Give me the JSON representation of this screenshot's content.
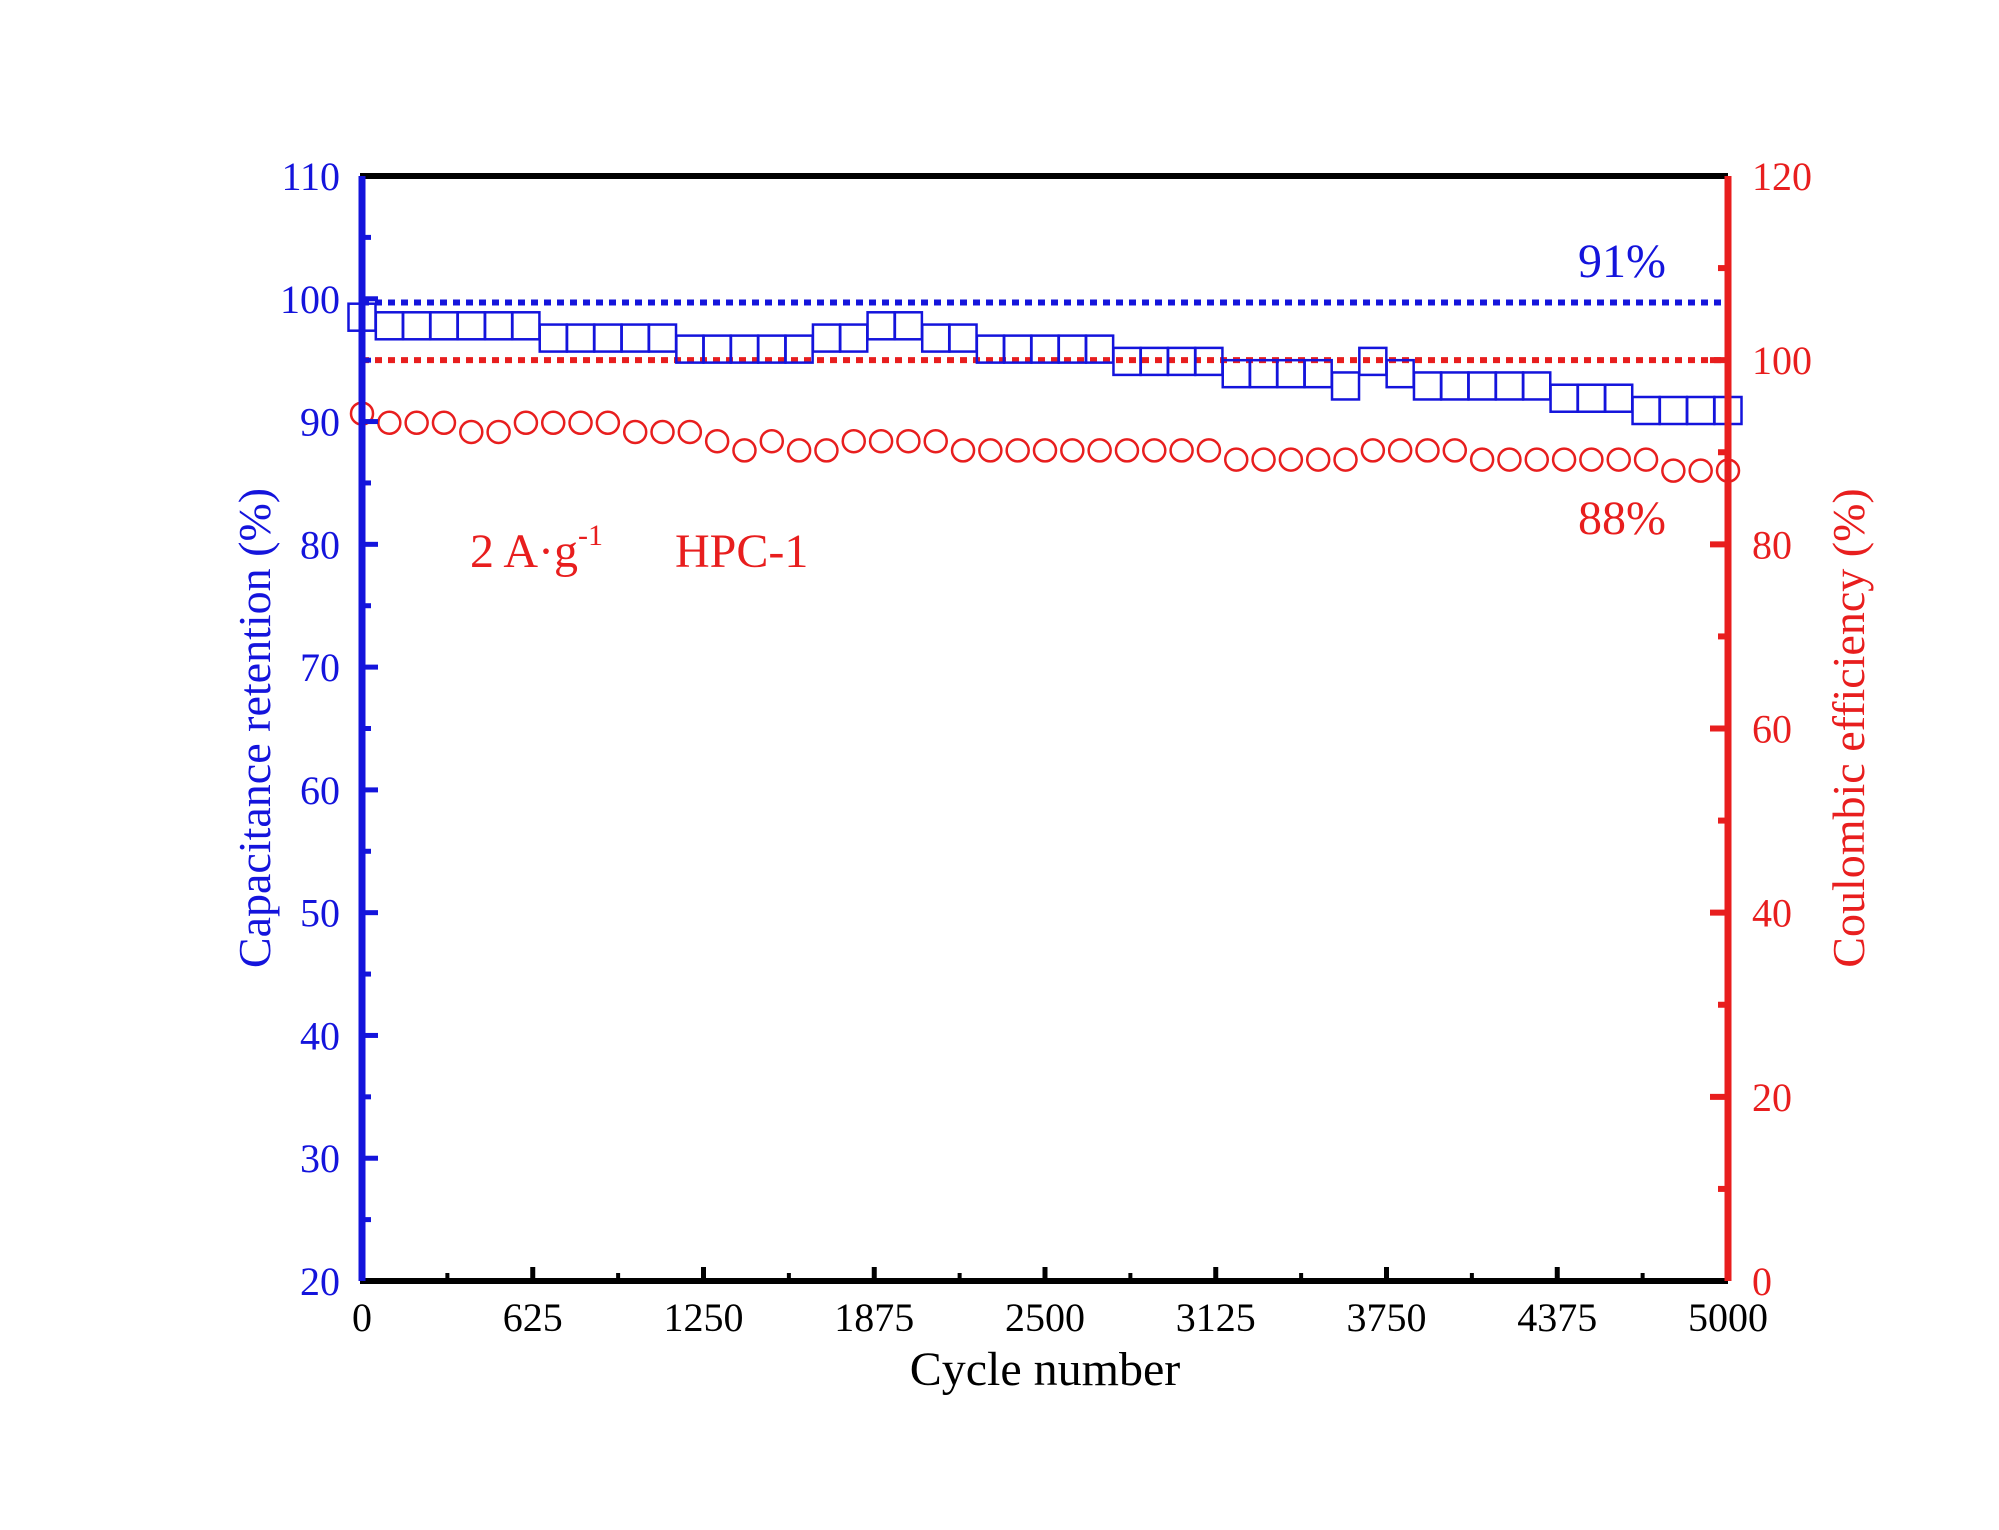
{
  "chart_data": {
    "type": "scatter",
    "xlabel": "Cycle number",
    "ylabel_left": "Capacitance retention (%)",
    "ylabel_right": "Coulombic efficiency (%)",
    "xlim": [
      0,
      5000
    ],
    "ylim_left": [
      20,
      110
    ],
    "ylim_right": [
      0,
      120
    ],
    "x_ticks": [
      "0",
      "625",
      "1250",
      "1875",
      "2500",
      "3125",
      "3750",
      "4375",
      "5000"
    ],
    "y_left_ticks": [
      "20",
      "30",
      "40",
      "50",
      "60",
      "70",
      "80",
      "90",
      "100",
      "110"
    ],
    "y_right_ticks": [
      "0",
      "20",
      "40",
      "60",
      "80",
      "100",
      "120"
    ],
    "colors": {
      "left": "#1414dc",
      "right": "#e81e1e",
      "frame": "#000000"
    },
    "reference_lines": [
      {
        "axis": "left",
        "value": 99.7,
        "color": "#1414dc"
      },
      {
        "axis": "right",
        "value": 100,
        "color": "#e81e1e"
      }
    ],
    "series": [
      {
        "name": "Capacitance retention",
        "axis": "left",
        "marker": "square",
        "color": "#1414dc",
        "x": [
          0,
          100,
          200,
          300,
          400,
          500,
          600,
          700,
          800,
          900,
          1000,
          1100,
          1200,
          1300,
          1400,
          1500,
          1600,
          1700,
          1800,
          1900,
          2000,
          2100,
          2200,
          2300,
          2400,
          2500,
          2600,
          2700,
          2800,
          2900,
          3000,
          3100,
          3200,
          3300,
          3400,
          3500,
          3600,
          3700,
          3800,
          3900,
          4000,
          4100,
          4200,
          4300,
          4400,
          4500,
          4600,
          4700,
          4800,
          4900,
          5000
        ],
        "values": [
          98.5,
          97.8,
          97.8,
          97.8,
          97.8,
          97.8,
          97.8,
          96.8,
          96.8,
          96.8,
          96.8,
          96.8,
          95.9,
          95.9,
          95.9,
          95.9,
          95.9,
          96.8,
          96.8,
          97.8,
          97.8,
          96.8,
          96.8,
          95.9,
          95.9,
          95.9,
          95.9,
          95.9,
          94.9,
          94.9,
          94.9,
          94.9,
          93.9,
          93.9,
          93.9,
          93.9,
          92.9,
          94.9,
          93.9,
          92.9,
          92.9,
          92.9,
          92.9,
          92.9,
          91.9,
          91.9,
          91.9,
          90.9,
          90.9,
          90.9,
          90.9
        ]
      },
      {
        "name": "Coulombic efficiency",
        "axis": "right",
        "marker": "circle",
        "color": "#e81e1e",
        "x": [
          0,
          100,
          200,
          300,
          400,
          500,
          600,
          700,
          800,
          900,
          1000,
          1100,
          1200,
          1300,
          1400,
          1500,
          1600,
          1700,
          1800,
          1900,
          2000,
          2100,
          2200,
          2300,
          2400,
          2500,
          2600,
          2700,
          2800,
          2900,
          3000,
          3100,
          3200,
          3300,
          3400,
          3500,
          3600,
          3700,
          3800,
          3900,
          4000,
          4100,
          4200,
          4300,
          4400,
          4500,
          4600,
          4700,
          4800,
          4900,
          5000
        ],
        "values": [
          94.2,
          93.2,
          93.2,
          93.2,
          92.2,
          92.2,
          93.2,
          93.2,
          93.2,
          93.2,
          92.2,
          92.2,
          92.2,
          91.2,
          90.2,
          91.2,
          90.2,
          90.2,
          91.2,
          91.2,
          91.2,
          91.2,
          90.2,
          90.2,
          90.2,
          90.2,
          90.2,
          90.2,
          90.2,
          90.2,
          90.2,
          90.2,
          89.2,
          89.2,
          89.2,
          89.2,
          89.2,
          90.2,
          90.2,
          90.2,
          90.2,
          89.2,
          89.2,
          89.2,
          89.2,
          89.2,
          89.2,
          89.2,
          88.0,
          88.0,
          88.0
        ]
      }
    ],
    "annotations": {
      "retention_label": "91%",
      "efficiency_label": "88%",
      "condition_label": "2 A·g",
      "condition_sup": "-1",
      "sample_label": "HPC-1"
    }
  }
}
